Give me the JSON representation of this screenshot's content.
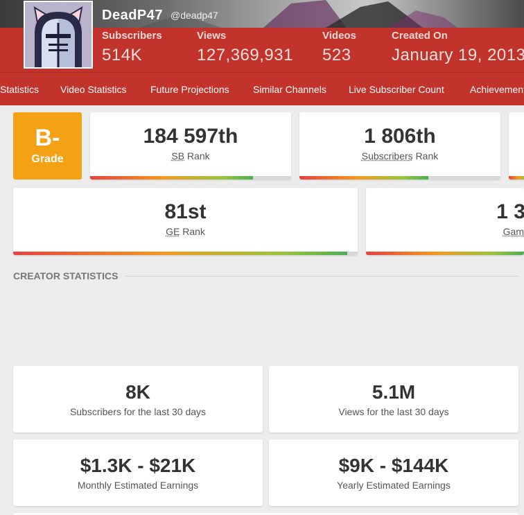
{
  "channel": {
    "name": "DeadP47",
    "handle": "@deadp47"
  },
  "header_stats": [
    {
      "label": "Subscribers",
      "value": "514K"
    },
    {
      "label": "Views",
      "value": "127,369,931"
    },
    {
      "label": "Videos",
      "value": "523"
    },
    {
      "label": "Created On",
      "value": "January 19, 2013"
    }
  ],
  "nav": {
    "tabs": [
      {
        "label": "Statistics"
      },
      {
        "label": "Video Statistics"
      },
      {
        "label": "Future Projections"
      },
      {
        "label": "Similar Channels"
      },
      {
        "label": "Live Subscriber Count"
      },
      {
        "label": "Achievements"
      }
    ]
  },
  "grade": {
    "value": "B-",
    "label": "Grade"
  },
  "ranks": [
    {
      "value": "184 597th",
      "abbr": "SB",
      "suffix": "Rank",
      "fill_percent": 81
    },
    {
      "value": "1 806th",
      "abbr": "Subscribers",
      "suffix": "Rank",
      "fill_percent": 64
    },
    {
      "value": "81st",
      "abbr": "GE",
      "suffix": "Rank",
      "fill_percent": 97
    },
    {
      "value": "1 3",
      "abbr": "Gam",
      "suffix": "",
      "fill_percent": 100
    }
  ],
  "section": {
    "title": "CREATOR STATISTICS"
  },
  "creator_stats": [
    {
      "value": "8K",
      "desc": "Subscribers for the last 30 days"
    },
    {
      "value": "5.1M",
      "desc": "Views for the last 30 days"
    },
    {
      "value": "$1.3K - $21K",
      "desc": "Monthly Estimated Earnings"
    },
    {
      "value": "$9K - $144K",
      "desc": "Yearly Estimated Earnings"
    }
  ],
  "colors": {
    "header": "#c2332b",
    "grade": "#f2a214"
  }
}
